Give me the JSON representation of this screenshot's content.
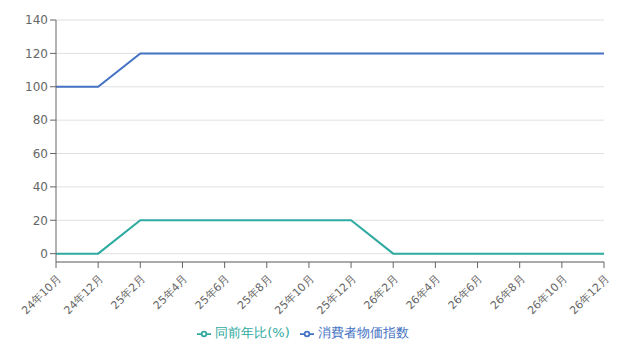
{
  "chart_data": {
    "type": "line",
    "categories": [
      "24年10月",
      "24年12月",
      "25年2月",
      "25年4月",
      "25年6月",
      "25年8月",
      "25年10月",
      "25年12月",
      "26年2月",
      "26年4月",
      "26年6月",
      "26年8月",
      "26年10月",
      "26年12月"
    ],
    "series": [
      {
        "name": "消費者物価指数",
        "color": "#4472C4",
        "values": [
          100,
          100,
          120,
          120,
          120,
          120,
          120,
          120,
          120,
          120,
          120,
          120,
          120,
          120
        ]
      },
      {
        "name": "同前年比(%)",
        "color": "#2EAAA0",
        "values": [
          0,
          0,
          20,
          20,
          20,
          20,
          20,
          20,
          0,
          0,
          0,
          0,
          0,
          0
        ]
      }
    ],
    "ylim": [
      -5,
      140
    ],
    "yticks": [
      0,
      20,
      40,
      60,
      80,
      100,
      120,
      140
    ],
    "grid": true,
    "legend": "bottom"
  }
}
